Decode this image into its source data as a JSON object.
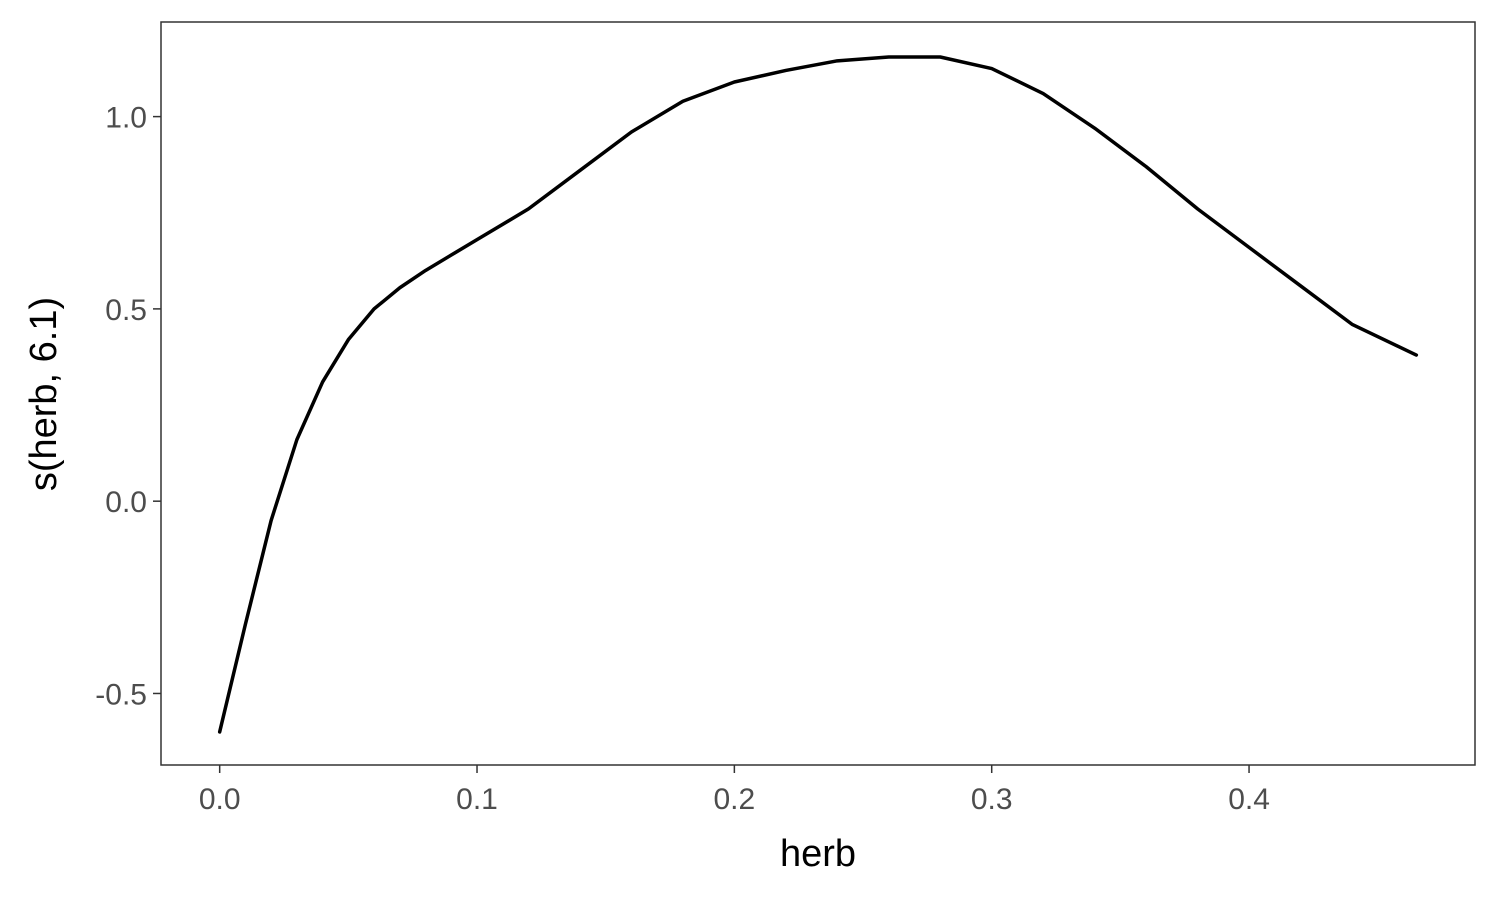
{
  "chart_data": {
    "type": "line",
    "title": "",
    "xlabel": "herb",
    "ylabel": "s(herb, 6.1)",
    "xlim": [
      -0.0228,
      0.4878
    ],
    "ylim": [
      -0.686,
      1.246
    ],
    "xticks": [
      0.0,
      0.1,
      0.2,
      0.3,
      0.4
    ],
    "xtick_labels": [
      "0.0",
      "0.1",
      "0.2",
      "0.3",
      "0.4"
    ],
    "yticks": [
      -0.5,
      0.0,
      0.5,
      1.0
    ],
    "ytick_labels": [
      "-0.5",
      "0.0",
      "0.5",
      "1.0"
    ],
    "grid": false,
    "line_color": "#000000",
    "series": [
      {
        "x": [
          0.0,
          0.01,
          0.02,
          0.03,
          0.04,
          0.05,
          0.06,
          0.07,
          0.08,
          0.09,
          0.1,
          0.12,
          0.14,
          0.16,
          0.18,
          0.2,
          0.22,
          0.24,
          0.26,
          0.28,
          0.3,
          0.32,
          0.34,
          0.36,
          0.38,
          0.4,
          0.42,
          0.44,
          0.465
        ],
        "y": [
          -0.6,
          -0.32,
          -0.05,
          0.16,
          0.31,
          0.42,
          0.5,
          0.555,
          0.6,
          0.64,
          0.68,
          0.76,
          0.86,
          0.96,
          1.04,
          1.09,
          1.12,
          1.145,
          1.155,
          1.155,
          1.125,
          1.06,
          0.97,
          0.87,
          0.76,
          0.66,
          0.56,
          0.46,
          0.38
        ]
      }
    ]
  }
}
